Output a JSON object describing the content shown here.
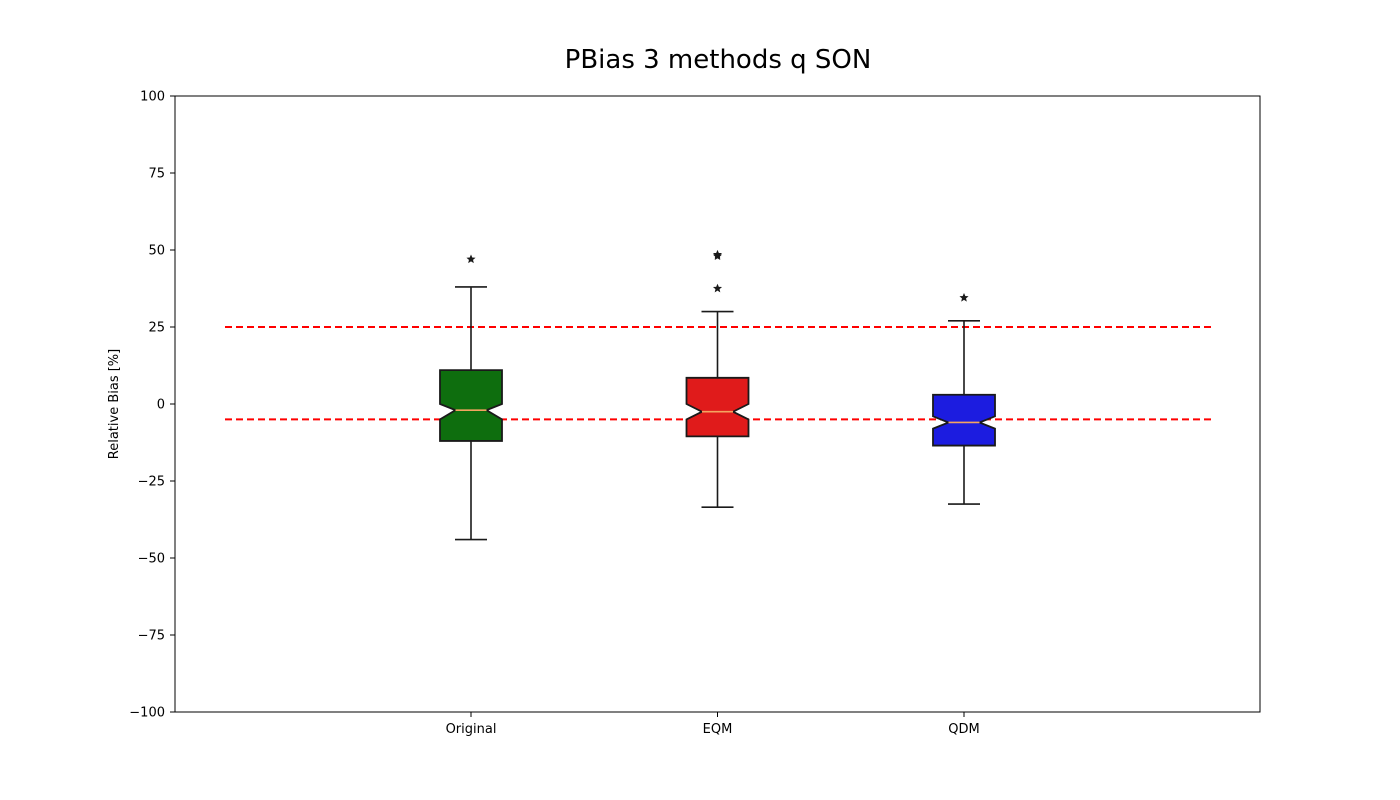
{
  "chart_data": {
    "type": "boxplot",
    "title": "PBias 3 methods q SON",
    "ylabel": "Relative Bias [%]",
    "xlabel": "",
    "ylim": [
      -100,
      100
    ],
    "yticks": [
      100,
      75,
      50,
      25,
      0,
      -25,
      -50,
      -75,
      -100
    ],
    "ytick_labels": [
      "100",
      "75",
      "50",
      "25",
      "0",
      "−25",
      "−50",
      "−75",
      "−100"
    ],
    "categories": [
      "Original",
      "EQM",
      "QDM"
    ],
    "notched": true,
    "boxes": [
      {
        "label": "Original",
        "color": "#0e6e0e",
        "whisker_low": -44,
        "q1": -12,
        "median": -2,
        "q3": 11,
        "whisker_high": 38,
        "notch_low": -5,
        "notch_high": 0,
        "outliers": [
          47
        ]
      },
      {
        "label": "EQM",
        "color": "#e01b1b",
        "whisker_low": -33.5,
        "q1": -10.5,
        "median": -2.5,
        "q3": 8.5,
        "whisker_high": 30,
        "notch_low": -5,
        "notch_high": 0,
        "outliers": [
          37.5,
          48,
          48.5
        ]
      },
      {
        "label": "QDM",
        "color": "#1c1ce0",
        "whisker_low": -32.5,
        "q1": -13.5,
        "median": -6,
        "q3": 3,
        "whisker_high": 27,
        "notch_low": -8,
        "notch_high": -4,
        "outliers": [
          34.5
        ]
      }
    ],
    "reference_lines": [
      {
        "y": 25,
        "color": "#ff0000",
        "style": "dashed"
      },
      {
        "y": -5,
        "color": "#ff0000",
        "style": "dashed"
      }
    ],
    "median_color": "#f4a460",
    "grid": false,
    "legend": "none"
  }
}
